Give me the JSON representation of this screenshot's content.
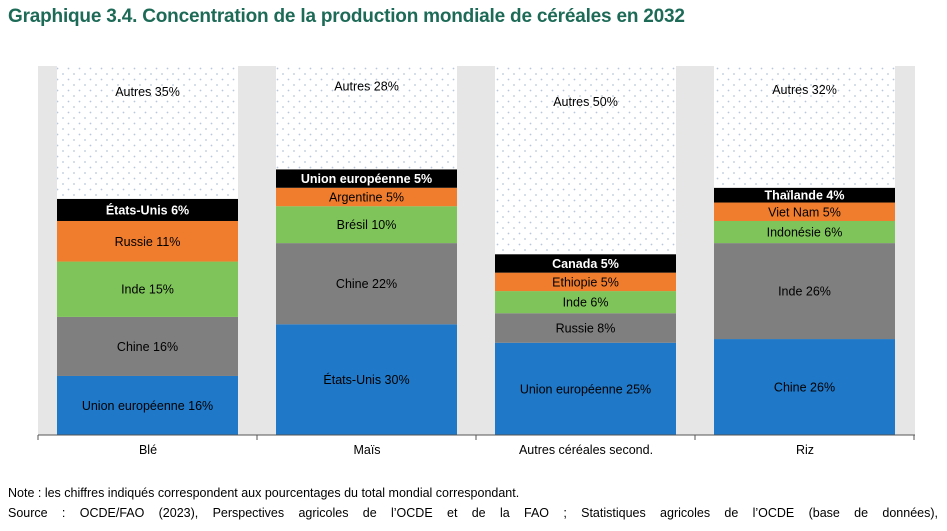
{
  "title": "Graphique 3.4. Concentration de la production mondiale de céréales en 2032",
  "note": "Note : les chiffres indiqués correspondent aux pourcentages du total mondial correspondant.",
  "source": {
    "label": "Source :",
    "text": "OCDE/FAO (2023), Perspectives agricoles de l’OCDE et de la FAO ; Statistiques agricoles de l’OCDE (base de données),"
  },
  "colors": {
    "blue": "#1f78c8",
    "gray": "#7f7f7f",
    "green": "#7fc45a",
    "orange": "#f07d2e",
    "black": "#000000",
    "dots": "#b9c7dc",
    "panel": "#e6e6e6"
  },
  "chart_data": {
    "type": "bar",
    "stacked": true,
    "unit": "%",
    "ylim": [
      0,
      100
    ],
    "categories": [
      "Blé",
      "Maïs",
      "Autres céréales second.",
      "Riz"
    ],
    "stacks": [
      {
        "category": "Blé",
        "segments": [
          {
            "name": "Union européenne",
            "value": 16,
            "label": "Union européenne 16%",
            "color": "blue"
          },
          {
            "name": "Chine",
            "value": 16,
            "label": "Chine 16%",
            "color": "gray"
          },
          {
            "name": "Inde",
            "value": 15,
            "label": "Inde 15%",
            "color": "green"
          },
          {
            "name": "Russie",
            "value": 11,
            "label": "Russie 11%",
            "color": "orange"
          },
          {
            "name": "États-Unis",
            "value": 6,
            "label": "États-Unis 6%",
            "color": "black"
          },
          {
            "name": "Autres",
            "value": 35,
            "label": "Autres 35%",
            "color": "dots"
          }
        ]
      },
      {
        "category": "Maïs",
        "segments": [
          {
            "name": "États-Unis",
            "value": 30,
            "label": "États-Unis 30%",
            "color": "blue"
          },
          {
            "name": "Chine",
            "value": 22,
            "label": "Chine 22%",
            "color": "gray"
          },
          {
            "name": "Brésil",
            "value": 10,
            "label": "Brésil 10%",
            "color": "green"
          },
          {
            "name": "Argentine",
            "value": 5,
            "label": "Argentine 5%",
            "color": "orange"
          },
          {
            "name": "Union européenne",
            "value": 5,
            "label": "Union européenne 5%",
            "color": "black"
          },
          {
            "name": "Autres",
            "value": 28,
            "label": "Autres 28%",
            "color": "dots"
          }
        ]
      },
      {
        "category": "Autres céréales second.",
        "segments": [
          {
            "name": "Union européenne",
            "value": 25,
            "label": "Union européenne 25%",
            "color": "blue"
          },
          {
            "name": "Russie",
            "value": 8,
            "label": "Russie 8%",
            "color": "gray"
          },
          {
            "name": "Inde",
            "value": 6,
            "label": "Inde 6%",
            "color": "green"
          },
          {
            "name": "Ethiopie",
            "value": 5,
            "label": "Ethiopie 5%",
            "color": "orange"
          },
          {
            "name": "Canada",
            "value": 5,
            "label": "Canada 5%",
            "color": "black"
          },
          {
            "name": "Autres",
            "value": 50,
            "label": "Autres 50%",
            "color": "dots"
          }
        ]
      },
      {
        "category": "Riz",
        "segments": [
          {
            "name": "Chine",
            "value": 26,
            "label": "Chine 26%",
            "color": "blue"
          },
          {
            "name": "Inde",
            "value": 26,
            "label": "Inde 26%",
            "color": "gray"
          },
          {
            "name": "Indonésie",
            "value": 6,
            "label": "Indonésie 6%",
            "color": "green"
          },
          {
            "name": "Viet Nam",
            "value": 5,
            "label": "Viet Nam 5%",
            "color": "orange"
          },
          {
            "name": "Thaïlande",
            "value": 4,
            "label": "Thaïlande 4%",
            "color": "black"
          },
          {
            "name": "Autres",
            "value": 32,
            "label": "Autres 32%",
            "color": "dots"
          }
        ]
      }
    ]
  }
}
